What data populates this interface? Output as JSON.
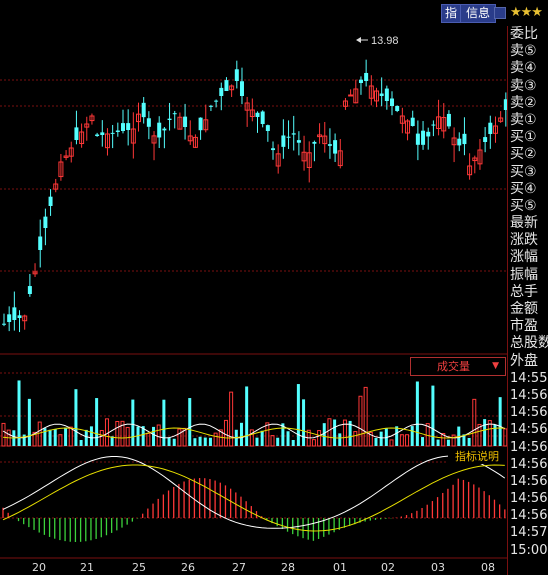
{
  "toolbar": {
    "zhi_label": "指",
    "info_label": "信息",
    "stars": "★★★"
  },
  "price_annotation": "13.98",
  "right_panel": {
    "quote_labels": [
      "委比",
      "卖⑤",
      "卖④",
      "卖③",
      "卖②",
      "卖①",
      "买①",
      "买②",
      "买③",
      "买④",
      "买⑤",
      "最新",
      "涨跌",
      "涨幅",
      "振幅",
      "总手",
      "金额",
      "市盈",
      "总股数",
      "外盘"
    ],
    "times": [
      "14:55",
      "14:56",
      "14:56",
      "14:56",
      "14:56",
      "14:56",
      "14:56",
      "14:56",
      "14:56",
      "14:57",
      "15:00"
    ]
  },
  "volume_panel": {
    "label": "成交量",
    "arrow": "▼"
  },
  "indicator_panel": {
    "label": "指标说明"
  },
  "date_labels": [
    "20",
    "21",
    "25",
    "26",
    "27",
    "28",
    "01",
    "02",
    "03",
    "08"
  ],
  "colors": {
    "up": "#ff3838",
    "down": "#54ffff",
    "ma_white": "#ffffff",
    "ma_yellow": "#e8e000",
    "grid": "#7a1010",
    "macd_pos": "#ff3838",
    "macd_neg": "#3cd23c"
  }
}
